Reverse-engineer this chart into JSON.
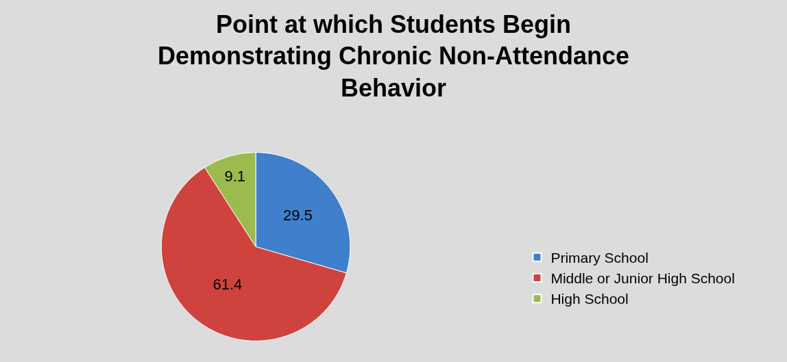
{
  "chart_data": {
    "type": "pie",
    "title": "Point at which Students Begin Demonstrating Chronic Non-Attendance Behavior",
    "categories": [
      "Primary School",
      "Middle or Junior High School",
      "High School"
    ],
    "values": [
      29.5,
      61.4,
      9.1
    ],
    "colors": [
      "#3f7fcb",
      "#cf433e",
      "#9bbb4f"
    ],
    "data_labels": true,
    "legend": "right"
  }
}
